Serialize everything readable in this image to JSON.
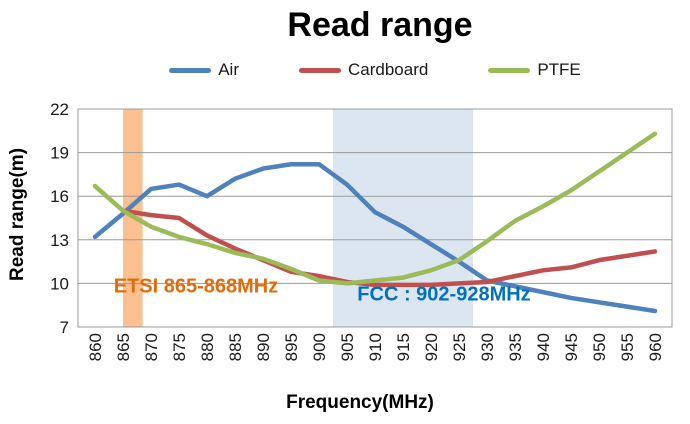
{
  "chart_data": {
    "type": "line",
    "title": "Read range",
    "x_label": "Frequency(MHz)",
    "y_label": "Read range(m)",
    "xlim": [
      860,
      960
    ],
    "ylim": [
      7,
      22
    ],
    "y_ticks": [
      7,
      10,
      13,
      16,
      19,
      22
    ],
    "grid": "horizontal",
    "legend_position": "top",
    "x": [
      860,
      865,
      870,
      875,
      880,
      885,
      890,
      895,
      900,
      905,
      910,
      915,
      920,
      925,
      930,
      935,
      940,
      945,
      950,
      955,
      960
    ],
    "series": [
      {
        "name": "Air",
        "color": "#4F81BD",
        "values": [
          13.2,
          14.8,
          16.5,
          16.8,
          16.0,
          17.2,
          17.9,
          18.2,
          18.2,
          16.8,
          14.9,
          13.9,
          12.7,
          11.5,
          10.2,
          9.8,
          9.4,
          9.0,
          8.7,
          8.4,
          8.1
        ]
      },
      {
        "name": "Cardboard",
        "color": "#C0504D",
        "values": [
          null,
          15.0,
          14.7,
          14.5,
          13.3,
          12.4,
          11.6,
          10.8,
          10.5,
          10.1,
          9.9,
          9.9,
          9.9,
          10.0,
          10.1,
          10.5,
          10.9,
          11.1,
          11.6,
          11.9,
          12.2
        ]
      },
      {
        "name": "PTFE",
        "color": "#9BBB59",
        "values": [
          16.7,
          15.0,
          13.9,
          13.2,
          12.7,
          12.1,
          11.7,
          11.0,
          10.2,
          10.0,
          10.2,
          10.4,
          10.9,
          11.6,
          12.9,
          14.3,
          15.3,
          16.4,
          17.7,
          19.0,
          20.3
        ]
      }
    ],
    "bands": [
      {
        "name": "ETSI",
        "label": "ETSI 865-868MHz",
        "range_mhz": [
          865,
          868.5
        ],
        "fill": "#FAC090",
        "label_color": "#E36C0A"
      },
      {
        "name": "FCC",
        "label": "FCC :  902-928MHz",
        "range_mhz": [
          902.5,
          927.5
        ],
        "fill": "#DCE6F1",
        "label_color": "#0070C0"
      }
    ]
  }
}
